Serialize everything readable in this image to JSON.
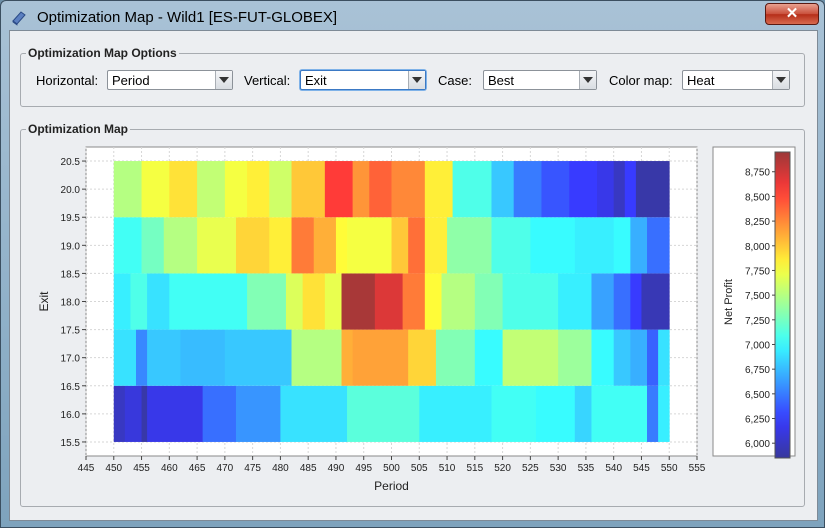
{
  "window": {
    "title": "Optimization Map -  Wild1 [ES-FUT-GLOBEX]",
    "close_label": "✕"
  },
  "options": {
    "title": "Optimization Map Options",
    "horizontal": {
      "label": "Horizontal:",
      "value": "Period"
    },
    "vertical": {
      "label": "Vertical:",
      "value": "Exit"
    },
    "case": {
      "label": "Case:",
      "value": "Best"
    },
    "colormap": {
      "label": "Color map:",
      "value": "Heat"
    }
  },
  "map_panel": {
    "title": "Optimization Map"
  },
  "chart_data": {
    "type": "heatmap",
    "xlabel": "Period",
    "ylabel": "Exit",
    "colorbar_label": "Net Profit",
    "xlim": [
      445,
      555
    ],
    "ylim": [
      15.5,
      20.5
    ],
    "x_ticks": [
      "445",
      "450",
      "455",
      "460",
      "465",
      "470",
      "475",
      "480",
      "485",
      "490",
      "495",
      "500",
      "505",
      "510",
      "515",
      "520",
      "525",
      "530",
      "535",
      "540",
      "545",
      "550",
      "555"
    ],
    "y_ticks": [
      "15.5",
      "16.0",
      "16.5",
      "17.0",
      "17.5",
      "18.0",
      "18.5",
      "19.0",
      "19.5",
      "20.0",
      "20.5"
    ],
    "colorbar_ticks": [
      "6,000",
      "6,250",
      "6,500",
      "6,750",
      "7,000",
      "7,250",
      "7,500",
      "7,750",
      "8,000",
      "8,250",
      "8,500",
      "8,750"
    ],
    "colorbar_range": [
      5850,
      8950
    ],
    "grid": true,
    "x_range": [
      450,
      550
    ],
    "rows": [
      {
        "y_from": 15.5,
        "y_to": 16.5,
        "segments": [
          [
            450,
            452,
            6000
          ],
          [
            452,
            455,
            6100
          ],
          [
            455,
            456,
            5900
          ],
          [
            456,
            466,
            6150
          ],
          [
            466,
            472,
            6450
          ],
          [
            472,
            480,
            6600
          ],
          [
            480,
            492,
            6900
          ],
          [
            492,
            505,
            7150
          ],
          [
            505,
            518,
            6950
          ],
          [
            518,
            526,
            7050
          ],
          [
            526,
            533,
            7000
          ],
          [
            533,
            536,
            6850
          ],
          [
            536,
            546,
            7050
          ],
          [
            546,
            548,
            6500
          ],
          [
            548,
            550,
            6950
          ]
        ]
      },
      {
        "y_from": 16.5,
        "y_to": 17.5,
        "segments": [
          [
            450,
            454,
            6900
          ],
          [
            454,
            456,
            6550
          ],
          [
            456,
            462,
            6800
          ],
          [
            462,
            470,
            6750
          ],
          [
            470,
            482,
            6800
          ],
          [
            482,
            491,
            7500
          ],
          [
            491,
            493,
            8100
          ],
          [
            493,
            503,
            8150
          ],
          [
            503,
            508,
            7950
          ],
          [
            508,
            515,
            7300
          ],
          [
            515,
            520,
            7000
          ],
          [
            520,
            530,
            7550
          ],
          [
            530,
            536,
            7400
          ],
          [
            536,
            540,
            7000
          ],
          [
            540,
            543,
            6800
          ],
          [
            543,
            546,
            6700
          ],
          [
            546,
            548,
            6400
          ],
          [
            548,
            550,
            6900
          ]
        ]
      },
      {
        "y_from": 17.5,
        "y_to": 18.5,
        "segments": [
          [
            450,
            453,
            6950
          ],
          [
            453,
            456,
            7100
          ],
          [
            456,
            460,
            6900
          ],
          [
            460,
            466,
            7050
          ],
          [
            466,
            474,
            7050
          ],
          [
            474,
            481,
            7300
          ],
          [
            481,
            484,
            7650
          ],
          [
            484,
            488,
            7900
          ],
          [
            488,
            491,
            7700
          ],
          [
            491,
            497,
            8900
          ],
          [
            497,
            502,
            8700
          ],
          [
            502,
            506,
            8300
          ],
          [
            506,
            509,
            7800
          ],
          [
            509,
            515,
            7500
          ],
          [
            515,
            520,
            7300
          ],
          [
            520,
            530,
            7100
          ],
          [
            530,
            536,
            6950
          ],
          [
            536,
            540,
            6650
          ],
          [
            540,
            543,
            6450
          ],
          [
            543,
            545,
            6250
          ],
          [
            545,
            550,
            5950
          ]
        ]
      },
      {
        "y_from": 18.5,
        "y_to": 19.5,
        "segments": [
          [
            450,
            455,
            7050
          ],
          [
            455,
            459,
            7250
          ],
          [
            459,
            465,
            7500
          ],
          [
            465,
            472,
            7700
          ],
          [
            472,
            478,
            7950
          ],
          [
            478,
            482,
            7850
          ],
          [
            482,
            486,
            8300
          ],
          [
            486,
            490,
            8100
          ],
          [
            490,
            492,
            7800
          ],
          [
            492,
            500,
            7750
          ],
          [
            500,
            503,
            8000
          ],
          [
            503,
            506,
            8350
          ],
          [
            506,
            510,
            7850
          ],
          [
            510,
            518,
            7350
          ],
          [
            518,
            525,
            7100
          ],
          [
            525,
            533,
            7000
          ],
          [
            533,
            540,
            6950
          ],
          [
            540,
            543,
            7000
          ],
          [
            543,
            546,
            6700
          ],
          [
            546,
            550,
            6450
          ]
        ]
      },
      {
        "y_from": 19.5,
        "y_to": 20.5,
        "segments": [
          [
            450,
            455,
            7500
          ],
          [
            455,
            460,
            7750
          ],
          [
            460,
            465,
            7900
          ],
          [
            465,
            470,
            7550
          ],
          [
            470,
            474,
            7750
          ],
          [
            474,
            478,
            7850
          ],
          [
            478,
            482,
            7600
          ],
          [
            482,
            488,
            8000
          ],
          [
            488,
            493,
            8550
          ],
          [
            493,
            496,
            8200
          ],
          [
            496,
            500,
            8400
          ],
          [
            500,
            506,
            8250
          ],
          [
            506,
            511,
            7850
          ],
          [
            511,
            518,
            7100
          ],
          [
            518,
            522,
            6800
          ],
          [
            522,
            527,
            6500
          ],
          [
            527,
            532,
            6350
          ],
          [
            532,
            537,
            6250
          ],
          [
            537,
            540,
            6150
          ],
          [
            540,
            542,
            6000
          ],
          [
            542,
            544,
            6250
          ],
          [
            544,
            550,
            5900
          ]
        ]
      }
    ]
  }
}
